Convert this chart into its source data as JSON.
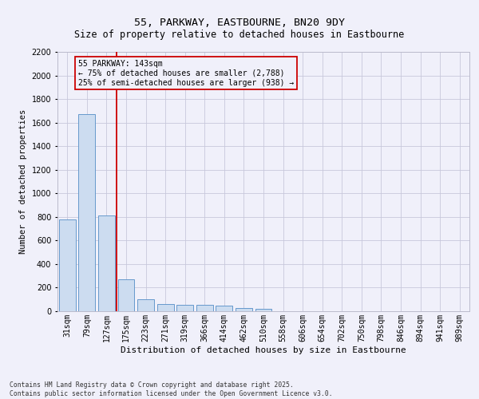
{
  "title": "55, PARKWAY, EASTBOURNE, BN20 9DY",
  "subtitle": "Size of property relative to detached houses in Eastbourne",
  "xlabel": "Distribution of detached houses by size in Eastbourne",
  "ylabel": "Number of detached properties",
  "categories": [
    "31sqm",
    "79sqm",
    "127sqm",
    "175sqm",
    "223sqm",
    "271sqm",
    "319sqm",
    "366sqm",
    "414sqm",
    "462sqm",
    "510sqm",
    "558sqm",
    "606sqm",
    "654sqm",
    "702sqm",
    "750sqm",
    "798sqm",
    "846sqm",
    "894sqm",
    "941sqm",
    "989sqm"
  ],
  "values": [
    780,
    1670,
    810,
    270,
    100,
    60,
    55,
    55,
    45,
    25,
    20,
    0,
    0,
    0,
    0,
    0,
    0,
    0,
    0,
    0,
    0
  ],
  "bar_color": "#ccdcf0",
  "bar_edge_color": "#6699cc",
  "ylim": [
    0,
    2200
  ],
  "yticks": [
    0,
    200,
    400,
    600,
    800,
    1000,
    1200,
    1400,
    1600,
    1800,
    2000,
    2200
  ],
  "vline_x": 2.5,
  "vline_color": "#cc0000",
  "annotation_line1": "55 PARKWAY: 143sqm",
  "annotation_line2": "← 75% of detached houses are smaller (2,788)",
  "annotation_line3": "25% of semi-detached houses are larger (938) →",
  "annotation_box_color": "#cc0000",
  "footer_line1": "Contains HM Land Registry data © Crown copyright and database right 2025.",
  "footer_line2": "Contains public sector information licensed under the Open Government Licence v3.0.",
  "bg_color": "#f0f0fa",
  "grid_color": "#c8c8dc",
  "title_fontsize": 9.5,
  "subtitle_fontsize": 8.5,
  "tick_fontsize": 7,
  "ylabel_fontsize": 7.5,
  "xlabel_fontsize": 8,
  "annot_fontsize": 7,
  "footer_fontsize": 5.8
}
